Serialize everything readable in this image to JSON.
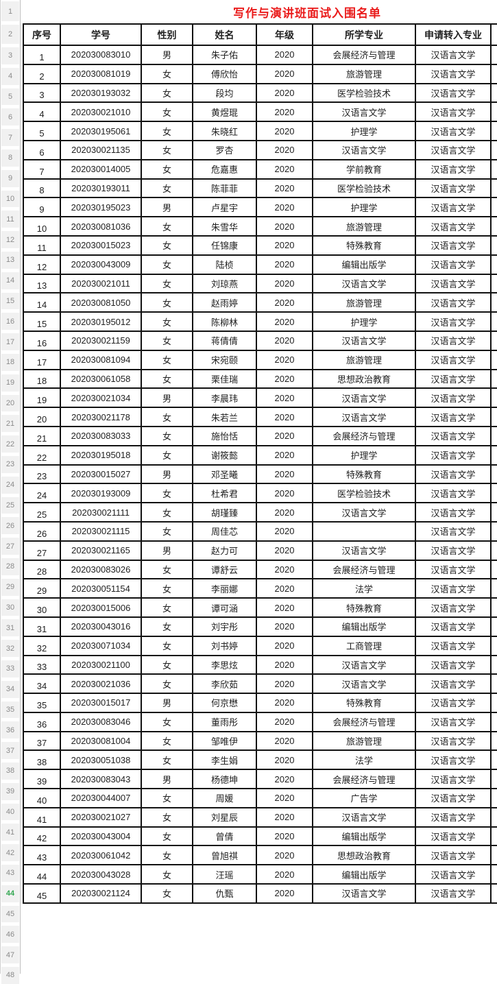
{
  "sheet": {
    "title": "写作与演讲班面试入围名单",
    "title_color": "#ea1c1c",
    "columns": [
      "序号",
      "学号",
      "性别",
      "姓名",
      "年级",
      "所学专业",
      "申请转入专业"
    ],
    "rows": [
      [
        "1",
        "202030083010",
        "男",
        "朱子佑",
        "2020",
        "会展经济与管理",
        "汉语言文学"
      ],
      [
        "2",
        "202030081019",
        "女",
        "傅欣怡",
        "2020",
        "旅游管理",
        "汉语言文学"
      ],
      [
        "3",
        "202030193032",
        "女",
        "段均",
        "2020",
        "医学检验技术",
        "汉语言文学"
      ],
      [
        "4",
        "202030021010",
        "女",
        "黄煜琨",
        "2020",
        "汉语言文学",
        "汉语言文学"
      ],
      [
        "5",
        "202030195061",
        "女",
        "朱晓红",
        "2020",
        "护理学",
        "汉语言文学"
      ],
      [
        "6",
        "202030021135",
        "女",
        "罗杏",
        "2020",
        "汉语言文学",
        "汉语言文学"
      ],
      [
        "7",
        "202030014005",
        "女",
        "危嘉惠",
        "2020",
        "学前教育",
        "汉语言文学"
      ],
      [
        "8",
        "202030193011",
        "女",
        "陈菲菲",
        "2020",
        "医学检验技术",
        "汉语言文学"
      ],
      [
        "9",
        "202030195023",
        "男",
        "卢星宇",
        "2020",
        "护理学",
        "汉语言文学"
      ],
      [
        "10",
        "202030081036",
        "女",
        "朱雪华",
        "2020",
        "旅游管理",
        "汉语言文学"
      ],
      [
        "11",
        "202030015023",
        "女",
        "任锦康",
        "2020",
        "特殊教育",
        "汉语言文学"
      ],
      [
        "12",
        "202030043009",
        "女",
        "陆桢",
        "2020",
        "编辑出版学",
        "汉语言文学"
      ],
      [
        "13",
        "202030021011",
        "女",
        "刘琼燕",
        "2020",
        "汉语言文学",
        "汉语言文学"
      ],
      [
        "14",
        "202030081050",
        "女",
        "赵雨婷",
        "2020",
        "旅游管理",
        "汉语言文学"
      ],
      [
        "15",
        "202030195012",
        "女",
        "陈柳林",
        "2020",
        "护理学",
        "汉语言文学"
      ],
      [
        "16",
        "202030021159",
        "女",
        "蒋倩倩",
        "2020",
        "汉语言文学",
        "汉语言文学"
      ],
      [
        "17",
        "202030081094",
        "女",
        "宋宛颐",
        "2020",
        "旅游管理",
        "汉语言文学"
      ],
      [
        "18",
        "202030061058",
        "女",
        "栗佳瑞",
        "2020",
        "思想政治教育",
        "汉语言文学"
      ],
      [
        "19",
        "202030021034",
        "男",
        "李晨玮",
        "2020",
        "汉语言文学",
        "汉语言文学"
      ],
      [
        "20",
        "202030021178",
        "女",
        "朱若兰",
        "2020",
        "汉语言文学",
        "汉语言文学"
      ],
      [
        "21",
        "202030083033",
        "女",
        "施怡恬",
        "2020",
        "会展经济与管理",
        "汉语言文学"
      ],
      [
        "22",
        "202030195018",
        "女",
        "谢筱懿",
        "2020",
        "护理学",
        "汉语言文学"
      ],
      [
        "23",
        "202030015027",
        "男",
        "邓圣曦",
        "2020",
        "特殊教育",
        "汉语言文学"
      ],
      [
        "24",
        "202030193009",
        "女",
        "杜希君",
        "2020",
        "医学检验技术",
        "汉语言文学"
      ],
      [
        "25",
        "202030021111",
        "女",
        "胡瑾臻",
        "2020",
        "汉语言文学",
        "汉语言文学"
      ],
      [
        "26",
        "202030021115",
        "女",
        "周佳芯",
        "2020",
        "",
        "汉语言文学"
      ],
      [
        "27",
        "202030021165",
        "男",
        "赵力可",
        "2020",
        "汉语言文学",
        "汉语言文学"
      ],
      [
        "28",
        "202030083026",
        "女",
        "谭舒云",
        "2020",
        "会展经济与管理",
        "汉语言文学"
      ],
      [
        "29",
        "202030051154",
        "女",
        "李丽娜",
        "2020",
        "法学",
        "汉语言文学"
      ],
      [
        "30",
        "202030015006",
        "女",
        "谭可涵",
        "2020",
        "特殊教育",
        "汉语言文学"
      ],
      [
        "31",
        "202030043016",
        "女",
        "刘宇彤",
        "2020",
        "编辑出版学",
        "汉语言文学"
      ],
      [
        "32",
        "202030071034",
        "女",
        "刘书婷",
        "2020",
        "工商管理",
        "汉语言文学"
      ],
      [
        "33",
        "202030021100",
        "女",
        "李思炫",
        "2020",
        "汉语言文学",
        "汉语言文学"
      ],
      [
        "34",
        "202030021036",
        "女",
        "李欣茹",
        "2020",
        "汉语言文学",
        "汉语言文学"
      ],
      [
        "35",
        "202030015017",
        "男",
        "何京懋",
        "2020",
        "特殊教育",
        "汉语言文学"
      ],
      [
        "36",
        "202030083046",
        "女",
        "董雨彤",
        "2020",
        "会展经济与管理",
        "汉语言文学"
      ],
      [
        "37",
        "202030081004",
        "女",
        "邹唯伊",
        "2020",
        "旅游管理",
        "汉语言文学"
      ],
      [
        "38",
        "202030051038",
        "女",
        "李生娟",
        "2020",
        "法学",
        "汉语言文学"
      ],
      [
        "39",
        "202030083043",
        "男",
        "杨德坤",
        "2020",
        "会展经济与管理",
        "汉语言文学"
      ],
      [
        "40",
        "202030044007",
        "女",
        "周媛",
        "2020",
        "广告学",
        "汉语言文学"
      ],
      [
        "41",
        "202030021027",
        "女",
        "刘星辰",
        "2020",
        "汉语言文学",
        "汉语言文学"
      ],
      [
        "42",
        "202030043004",
        "女",
        "曾倩",
        "2020",
        "编辑出版学",
        "汉语言文学"
      ],
      [
        "43",
        "202030061042",
        "女",
        "曾旭祺",
        "2020",
        "思想政治教育",
        "汉语言文学"
      ],
      [
        "44",
        "202030043028",
        "女",
        "汪瑶",
        "2020",
        "编辑出版学",
        "汉语言文学"
      ],
      [
        "45",
        "202030021124",
        "女",
        "仇甄",
        "2020",
        "汉语言文学",
        "汉语言文学"
      ]
    ],
    "gutter": {
      "visible_row_numbers_from": 1,
      "visible_row_numbers_to": 48,
      "highlighted_row_number": 44,
      "highlight_color": "#34a853"
    }
  }
}
